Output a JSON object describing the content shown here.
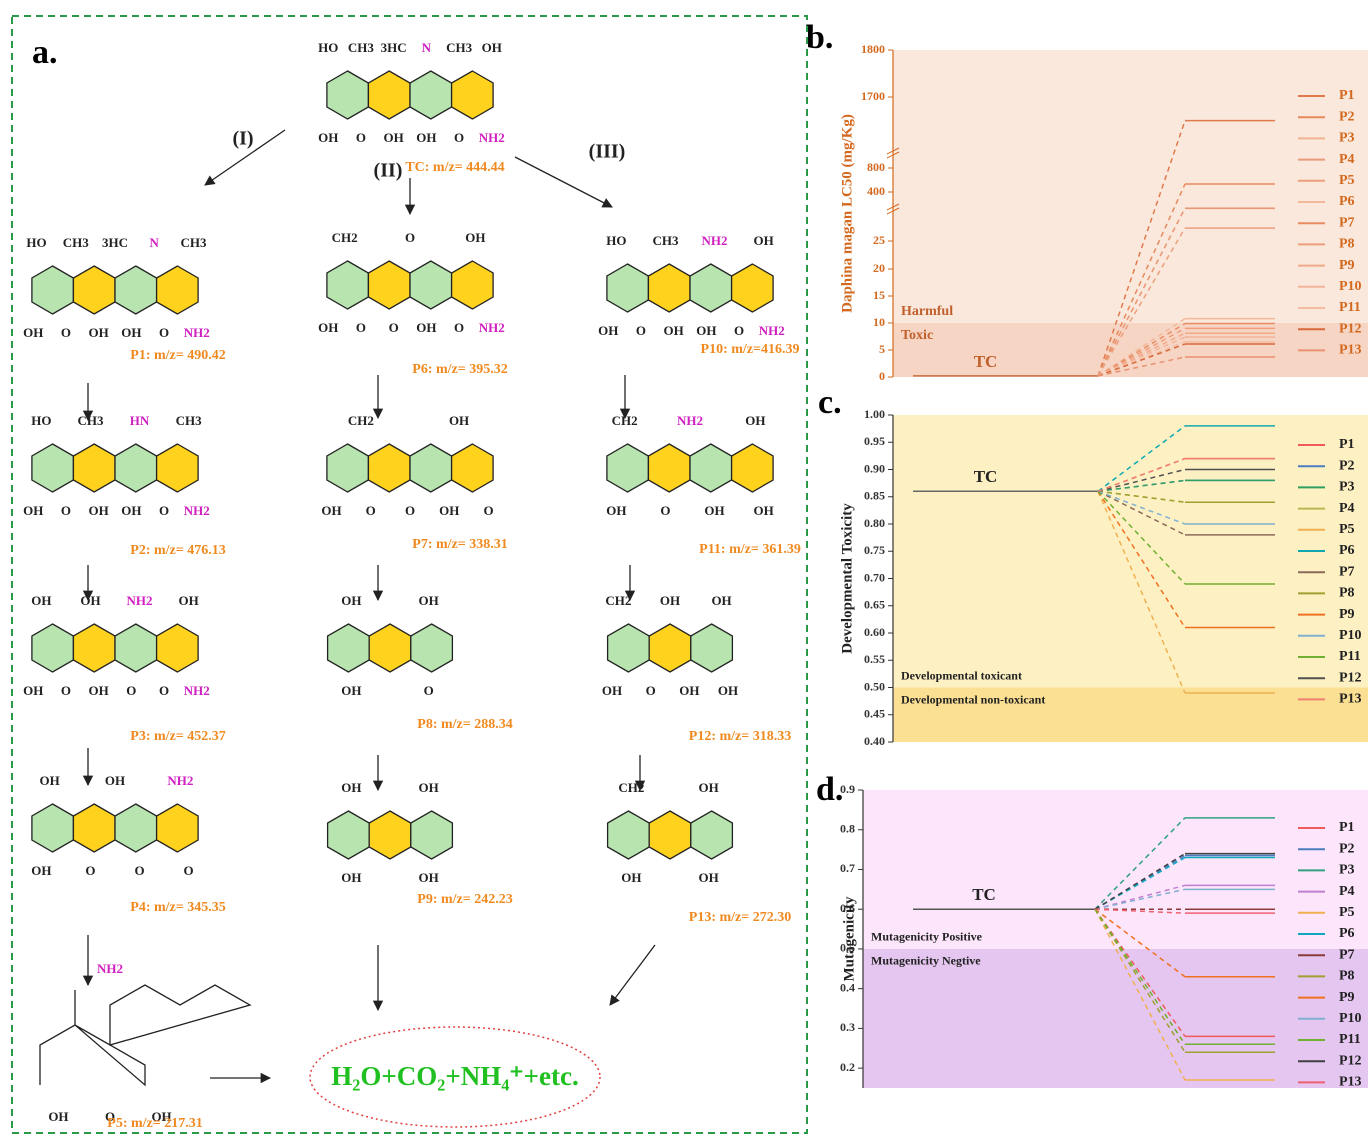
{
  "diagram": {
    "label": "a.",
    "pathways": [
      "(I)",
      "(II)",
      "(III)"
    ],
    "compounds": [
      {
        "name": "TC: m/z= 444.44",
        "top": [
          "HO",
          "CH3",
          "3HC",
          "N",
          "CH3",
          "OH"
        ],
        "bottom": [
          "OH",
          "O",
          "OH",
          "OH",
          "O",
          "NH2"
        ]
      },
      {
        "name": "P1: m/z= 490.42",
        "top": [
          "HO",
          "CH3",
          "3HC",
          "N",
          "CH3"
        ],
        "bottom": [
          "OH",
          "O",
          "OH",
          "OH",
          "O",
          "NH2"
        ]
      },
      {
        "name": "P2: m/z= 476.13",
        "top": [
          "HO",
          "CH3",
          "HN",
          "CH3"
        ],
        "bottom": [
          "OH",
          "O",
          "OH",
          "OH",
          "O",
          "NH2"
        ]
      },
      {
        "name": "P3: m/z= 452.37",
        "top": [
          "OH",
          "OH",
          "NH2",
          "OH"
        ],
        "bottom": [
          "OH",
          "O",
          "OH",
          "O",
          "O",
          "NH2"
        ]
      },
      {
        "name": "P4: m/z= 345.35",
        "top": [
          "OH",
          "OH",
          "NH2"
        ],
        "bottom": [
          "OH",
          "O",
          "O",
          "O"
        ]
      },
      {
        "name": "P5: m/z= 217.31",
        "top": [
          "NH2"
        ],
        "bottom": [
          "OH",
          "O",
          "OH"
        ]
      },
      {
        "name": "P6: m/z= 395.32",
        "top": [
          "CH2",
          "O",
          "OH"
        ],
        "bottom": [
          "OH",
          "O",
          "O",
          "OH",
          "O",
          "NH2"
        ]
      },
      {
        "name": "P7: m/z= 338.31",
        "top": [
          "CH2",
          "OH"
        ],
        "bottom": [
          "OH",
          "O",
          "O",
          "OH",
          "O"
        ]
      },
      {
        "name": "P8: m/z= 288.34",
        "top": [
          "OH",
          "OH"
        ],
        "bottom": [
          "OH",
          "O"
        ]
      },
      {
        "name": "P9: m/z= 242.23",
        "top": [
          "OH",
          "OH"
        ],
        "bottom": [
          "OH",
          "OH"
        ]
      },
      {
        "name": "P10: m/z=416.39",
        "top": [
          "HO",
          "CH3",
          "NH2",
          "OH"
        ],
        "bottom": [
          "OH",
          "O",
          "OH",
          "OH",
          "O",
          "NH2"
        ]
      },
      {
        "name": "P11: m/z= 361.39",
        "top": [
          "CH2",
          "NH2",
          "OH"
        ],
        "bottom": [
          "OH",
          "O",
          "OH",
          "OH"
        ]
      },
      {
        "name": "P12: m/z= 318.33",
        "top": [
          "CH2",
          "OH",
          "OH"
        ],
        "bottom": [
          "OH",
          "O",
          "OH",
          "OH"
        ]
      },
      {
        "name": "P13: m/z= 272.30",
        "top": [
          "CH2",
          "OH"
        ],
        "bottom": [
          "OH",
          "OH"
        ]
      }
    ],
    "products": "H₂O+CO₂+NH₄⁺+etc."
  },
  "chart_data": [
    {
      "type": "line",
      "label": "b.",
      "ylabel": "Daphina magan LC50 (mg/Kg)",
      "ylim": [
        0,
        1800
      ],
      "yticks": [
        0,
        5,
        10,
        15,
        20,
        25,
        400,
        800,
        1700,
        1800
      ],
      "bands": [
        {
          "label": "Harmful",
          "range": [
            10,
            1800
          ],
          "color": "#fae8dc"
        },
        {
          "label": "Toxic",
          "range": [
            0,
            10
          ],
          "color": "#f7d5c5"
        }
      ],
      "tc": {
        "name": "TC",
        "value": 0.2,
        "color": "#c8703c"
      },
      "series": [
        {
          "name": "P1",
          "color": "#e07a4a",
          "values": [
            1400
          ]
        },
        {
          "name": "P2",
          "color": "#e8895a",
          "values": [
            533
          ]
        },
        {
          "name": "P3",
          "color": "#f0b48e",
          "values": [
            277
          ]
        },
        {
          "name": "P4",
          "color": "#e89a78",
          "values": [
            275
          ]
        },
        {
          "name": "P5",
          "color": "#eba07c",
          "values": [
            124
          ]
        },
        {
          "name": "P6",
          "color": "#f2b898",
          "values": [
            10.8
          ]
        },
        {
          "name": "P7",
          "color": "#e88c64",
          "values": [
            9.9
          ]
        },
        {
          "name": "P8",
          "color": "#ee9e7c",
          "values": [
            9.0
          ]
        },
        {
          "name": "P9",
          "color": "#f0aa88",
          "values": [
            8.1
          ]
        },
        {
          "name": "P10",
          "color": "#f2b49a",
          "values": [
            7.4
          ]
        },
        {
          "name": "P11",
          "color": "#f4bca2",
          "values": [
            6.5
          ]
        },
        {
          "name": "P12",
          "color": "#d8683a",
          "values": [
            6.1
          ]
        },
        {
          "name": "P13",
          "color": "#e89070",
          "values": [
            3.7
          ]
        }
      ]
    },
    {
      "type": "line",
      "label": "c.",
      "ylabel": "Developmental Toxicity",
      "ylim": [
        0.4,
        1.0
      ],
      "yticks": [
        {
          "value": 0.4,
          "label": "0.40"
        },
        0.45,
        {
          "value": 0.5,
          "label": "0.50"
        },
        0.55,
        {
          "value": 0.6,
          "label": "0.60"
        },
        0.65,
        {
          "value": 0.7,
          "label": "0.70"
        },
        0.75,
        {
          "value": 0.8,
          "label": "0.80"
        },
        0.85,
        {
          "value": 0.9,
          "label": "0.90"
        },
        0.95,
        {
          "value": 1.0,
          "label": "1.00"
        }
      ],
      "bands": [
        {
          "label": "Developmental toxicant",
          "range": [
            0.5,
            1.0
          ],
          "color": "#fdf1c4"
        },
        {
          "label": "Developmental non-toxicant",
          "range": [
            0.4,
            0.5
          ],
          "color": "#fbe094"
        }
      ],
      "tc": {
        "name": "TC",
        "value": 0.86,
        "color": "#666666"
      },
      "series": [
        {
          "name": "P1",
          "color": "#f05a5a",
          "values": [
            0.92
          ]
        },
        {
          "name": "P2",
          "color": "#4a7cc0",
          "values": [
            0.88
          ]
        },
        {
          "name": "P3",
          "color": "#30a060",
          "values": [
            0.88
          ]
        },
        {
          "name": "P4",
          "color": "#b8b850",
          "values": [
            0.84
          ]
        },
        {
          "name": "P5",
          "color": "#f0b050",
          "values": [
            0.49
          ]
        },
        {
          "name": "P6",
          "color": "#10a8b0",
          "values": [
            0.98
          ]
        },
        {
          "name": "P7",
          "color": "#8b6a5a",
          "values": [
            0.78
          ]
        },
        {
          "name": "P8",
          "color": "#a0a030",
          "values": [
            0.84
          ]
        },
        {
          "name": "P9",
          "color": "#f07020",
          "values": [
            0.61
          ]
        },
        {
          "name": "P10",
          "color": "#80b0d0",
          "values": [
            0.8
          ]
        },
        {
          "name": "P11",
          "color": "#70b030",
          "values": [
            0.69
          ]
        },
        {
          "name": "P12",
          "color": "#505050",
          "values": [
            0.9
          ]
        },
        {
          "name": "P13",
          "color": "#f08070",
          "values": [
            0.92
          ]
        }
      ]
    },
    {
      "type": "line",
      "label": "d.",
      "ylabel": "Mutagenicity",
      "ylim": [
        0.15,
        0.9
      ],
      "yticks": [
        0.2,
        0.3,
        0.4,
        0.5,
        0.6,
        0.7,
        0.8,
        0.9
      ],
      "bands": [
        {
          "label": "Mutagenicity Positive",
          "range": [
            0.5,
            0.9
          ],
          "color": "#fde6fb"
        },
        {
          "label": "Mutagenicity Negtive",
          "range": [
            0.15,
            0.5
          ],
          "color": "#e4c6f0"
        }
      ],
      "tc": {
        "name": "TC",
        "value": 0.6,
        "color": "#555555"
      },
      "series": [
        {
          "name": "P1",
          "color": "#f05a5a",
          "values": [
            0.28
          ]
        },
        {
          "name": "P2",
          "color": "#4a7cc0",
          "values": [
            0.735
          ]
        },
        {
          "name": "P3",
          "color": "#30a080",
          "values": [
            0.83
          ]
        },
        {
          "name": "P4",
          "color": "#c080d0",
          "values": [
            0.66
          ]
        },
        {
          "name": "P5",
          "color": "#f0b050",
          "values": [
            0.17
          ]
        },
        {
          "name": "P6",
          "color": "#10a8c0",
          "values": [
            0.73
          ]
        },
        {
          "name": "P7",
          "color": "#8b3a3a",
          "values": [
            0.6
          ]
        },
        {
          "name": "P8",
          "color": "#a0a030",
          "values": [
            0.24
          ]
        },
        {
          "name": "P9",
          "color": "#f07020",
          "values": [
            0.43
          ]
        },
        {
          "name": "P10",
          "color": "#80b0d0",
          "values": [
            0.65
          ]
        },
        {
          "name": "P11",
          "color": "#70b030",
          "values": [
            0.26
          ]
        },
        {
          "name": "P12",
          "color": "#404040",
          "values": [
            0.74
          ]
        },
        {
          "name": "P13",
          "color": "#f06070",
          "values": [
            0.59
          ]
        }
      ]
    }
  ]
}
